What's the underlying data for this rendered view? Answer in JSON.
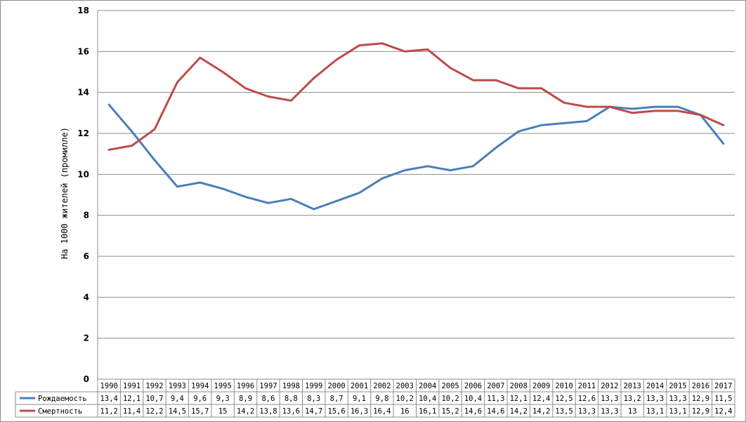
{
  "chart_data": {
    "type": "line",
    "x": [
      "1990",
      "1991",
      "1992",
      "1993",
      "1994",
      "1995",
      "1996",
      "1997",
      "1998",
      "1999",
      "2000",
      "2001",
      "2002",
      "2003",
      "2004",
      "2005",
      "2006",
      "2007",
      "2008",
      "2009",
      "2010",
      "2011",
      "2012",
      "2013",
      "2014",
      "2015",
      "2016",
      "2017"
    ],
    "series": [
      {
        "name": "Рождаемость",
        "color": "#4a7ebb",
        "values": [
          13.4,
          12.1,
          10.7,
          9.4,
          9.6,
          9.3,
          8.9,
          8.6,
          8.8,
          8.3,
          8.7,
          9.1,
          9.8,
          10.2,
          10.4,
          10.2,
          10.4,
          11.3,
          12.1,
          12.4,
          12.5,
          12.6,
          13.3,
          13.2,
          13.3,
          13.3,
          12.9,
          11.5
        ],
        "labels": [
          "13,4",
          "12,1",
          "10,7",
          "9,4",
          "9,6",
          "9,3",
          "8,9",
          "8,6",
          "8,8",
          "8,3",
          "8,7",
          "9,1",
          "9,8",
          "10,2",
          "10,4",
          "10,2",
          "10,4",
          "11,3",
          "12,1",
          "12,4",
          "12,5",
          "12,6",
          "13,3",
          "13,2",
          "13,3",
          "13,3",
          "12,9",
          "11,5"
        ]
      },
      {
        "name": "Смертность",
        "color": "#be4b48",
        "values": [
          11.2,
          11.4,
          12.2,
          14.5,
          15.7,
          15,
          14.2,
          13.8,
          13.6,
          14.7,
          15.6,
          16.3,
          16.4,
          16,
          16.1,
          15.2,
          14.6,
          14.6,
          14.2,
          14.2,
          13.5,
          13.3,
          13.3,
          13,
          13.1,
          13.1,
          12.9,
          12.4
        ],
        "labels": [
          "11,2",
          "11,4",
          "12,2",
          "14,5",
          "15,7",
          "15",
          "14,2",
          "13,8",
          "13,6",
          "14,7",
          "15,6",
          "16,3",
          "16,4",
          "16",
          "16,1",
          "15,2",
          "14,6",
          "14,6",
          "14,2",
          "14,2",
          "13,5",
          "13,3",
          "13,3",
          "13",
          "13,1",
          "13,1",
          "12,9",
          "12,4"
        ]
      }
    ],
    "ylabel": "На 1000 жителей (промилле)",
    "ylim": [
      0,
      18
    ],
    "yticks": [
      "0",
      "2",
      "4",
      "6",
      "8",
      "10",
      "12",
      "14",
      "16",
      "18"
    ],
    "grid": true,
    "data_table": true
  }
}
